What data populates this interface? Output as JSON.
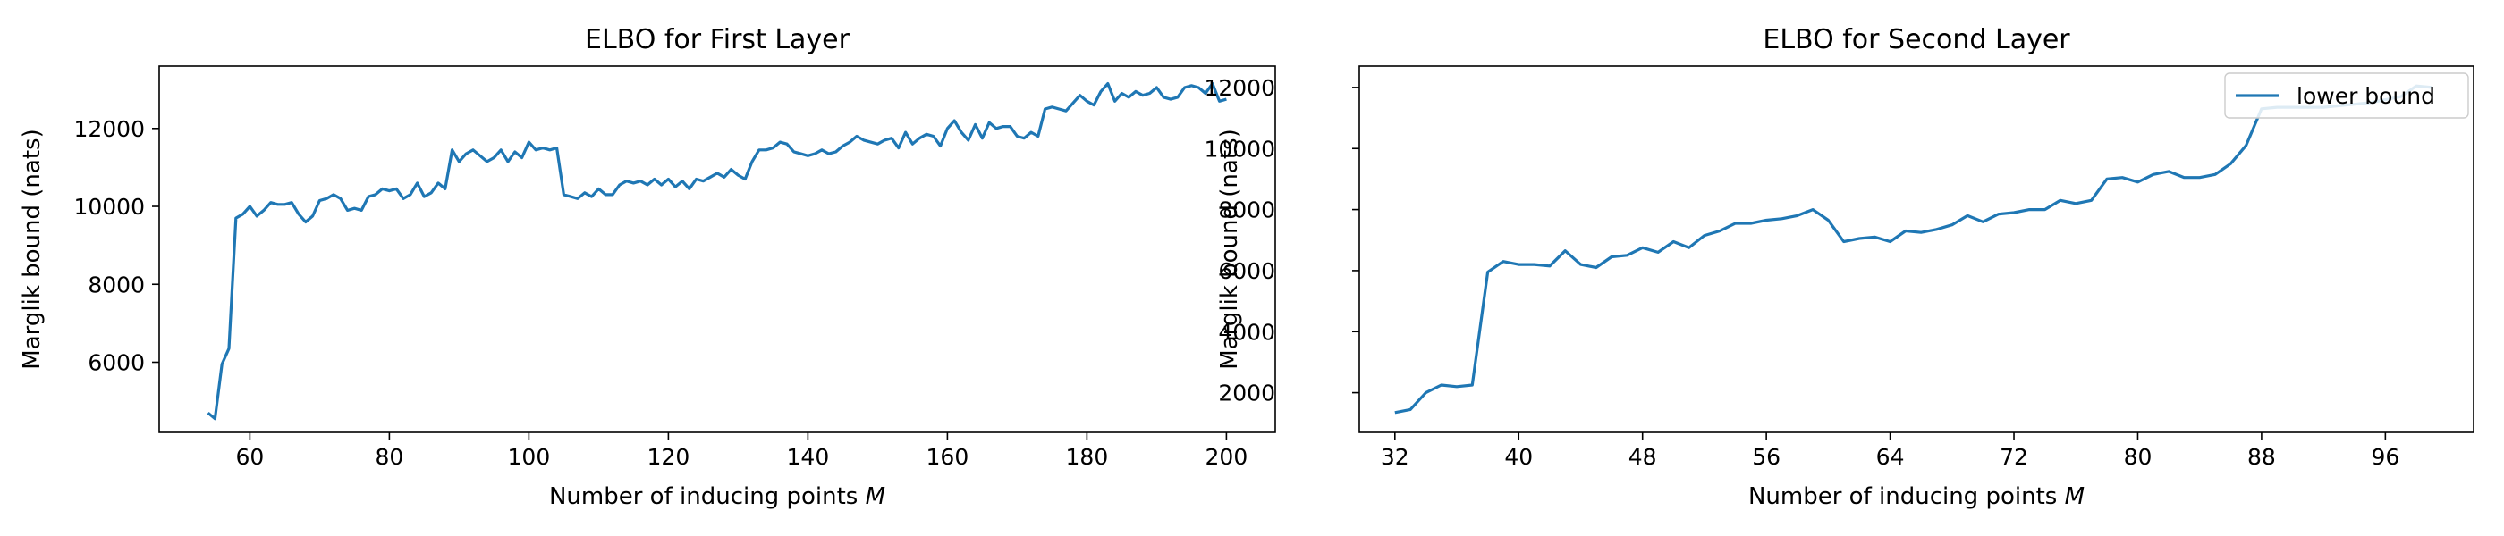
{
  "chart_data": [
    {
      "type": "line",
      "title": "ELBO for First Layer",
      "xlabel": "Number of inducing points M",
      "xlabel_plain": "Number of inducing points ",
      "xlabel_italic": "M",
      "ylabel": "Marglik bound (nats)",
      "xlim": [
        47,
        207
      ],
      "ylim": [
        4200,
        13600
      ],
      "xticks": [
        60,
        80,
        100,
        120,
        140,
        160,
        180,
        200
      ],
      "yticks": [
        6000,
        8000,
        10000,
        12000
      ],
      "grid": false,
      "color": "#1f77b4",
      "series": [
        {
          "x": [
            54,
            55,
            56,
            57,
            58,
            59,
            60,
            61,
            62,
            63,
            64,
            65,
            66,
            67,
            68,
            69,
            70,
            71,
            72,
            73,
            74,
            75,
            76,
            77,
            78,
            79,
            80,
            81,
            82,
            83,
            84,
            85,
            86,
            87,
            88,
            89,
            90,
            91,
            92,
            93,
            94,
            95,
            96,
            97,
            98,
            99,
            100,
            101,
            102,
            103,
            104,
            105,
            106,
            107,
            108,
            109,
            110,
            111,
            112,
            113,
            114,
            115,
            116,
            117,
            118,
            119,
            120,
            121,
            122,
            123,
            124,
            125,
            126,
            127,
            128,
            129,
            130,
            131,
            132,
            133,
            134,
            135,
            136,
            137,
            138,
            139,
            140,
            141,
            142,
            143,
            144,
            145,
            146,
            147,
            148,
            149,
            150,
            151,
            152,
            153,
            154,
            155,
            156,
            157,
            158,
            159,
            160,
            161,
            162,
            163,
            164,
            165,
            166,
            167,
            168,
            169,
            170,
            171,
            172,
            173,
            174,
            175,
            176,
            177,
            178,
            179,
            180,
            181,
            182,
            183,
            184,
            185,
            186,
            187,
            188,
            189,
            190,
            191,
            192,
            193,
            194,
            195,
            196,
            197,
            198,
            199,
            200
          ],
          "values": [
            4700,
            4550,
            5950,
            6350,
            9700,
            9800,
            10000,
            9750,
            9900,
            10100,
            10050,
            10050,
            10100,
            9800,
            9600,
            9750,
            10150,
            10200,
            10300,
            10200,
            9900,
            9950,
            9900,
            10250,
            10300,
            10450,
            10400,
            10450,
            10200,
            10300,
            10600,
            10250,
            10350,
            10600,
            10450,
            11450,
            11150,
            11350,
            11450,
            11300,
            11150,
            11250,
            11450,
            11150,
            11400,
            11250,
            11650,
            11450,
            11500,
            11450,
            11500,
            10300,
            10250,
            10200,
            10350,
            10250,
            10450,
            10300,
            10300,
            10550,
            10650,
            10600,
            10650,
            10550,
            10700,
            10550,
            10700,
            10500,
            10650,
            10450,
            10700,
            10650,
            10750,
            10850,
            10750,
            10950,
            10800,
            10700,
            11150,
            11450,
            11450,
            11500,
            11650,
            11600,
            11400,
            11350,
            11300,
            11350,
            11450,
            11350,
            11400,
            11550,
            11650,
            11800,
            11700,
            11650,
            11600,
            11700,
            11750,
            11500,
            11900,
            11600,
            11750,
            11850,
            11800,
            11550,
            12000,
            12200,
            11900,
            11700,
            12100,
            11750,
            12150,
            12000,
            12050,
            12050,
            11800,
            11750,
            11900,
            11800,
            12500,
            12550,
            12500,
            12450,
            12650,
            12850,
            12700,
            12600,
            12950,
            13150,
            12700,
            12900,
            12800,
            12950,
            12850,
            12900,
            13050,
            12800,
            12750,
            12800,
            13050,
            13100,
            13050,
            12900,
            13150,
            12700,
            12750
          ]
        }
      ]
    },
    {
      "type": "line",
      "title": "ELBO for Second Layer",
      "xlabel": "Number of inducing points M",
      "xlabel_plain": "Number of inducing points ",
      "xlabel_italic": "M",
      "ylabel": "Marglik bound (nats)",
      "xlim": [
        29.7,
        101.7
      ],
      "ylim": [
        700,
        12700
      ],
      "xticks": [
        32,
        40,
        48,
        56,
        64,
        72,
        80,
        88,
        96
      ],
      "yticks": [
        2000,
        4000,
        6000,
        8000,
        10000,
        12000
      ],
      "grid": false,
      "legend_position": "top-right",
      "color": "#1f77b4",
      "series": [
        {
          "name": "lower bound",
          "x": [
            32,
            33,
            34,
            35,
            36,
            37,
            38,
            39,
            40,
            41,
            42,
            43,
            44,
            45,
            46,
            47,
            48,
            49,
            50,
            51,
            52,
            53,
            54,
            55,
            56,
            57,
            58,
            59,
            60,
            61,
            62,
            63,
            64,
            65,
            66,
            67,
            68,
            69,
            70,
            71,
            72,
            73,
            74,
            75,
            76,
            77,
            78,
            79,
            80,
            81,
            82,
            83,
            84,
            85,
            86,
            87,
            88,
            89,
            90,
            91,
            92,
            93,
            94,
            95,
            96,
            97,
            98,
            99
          ],
          "values": [
            1350,
            1450,
            2000,
            2250,
            2200,
            2250,
            5950,
            6300,
            6200,
            6200,
            6150,
            6650,
            6200,
            6100,
            6450,
            6500,
            6750,
            6600,
            6950,
            6750,
            7150,
            7300,
            7550,
            7550,
            7650,
            7700,
            7800,
            8000,
            7650,
            6950,
            7050,
            7100,
            6950,
            7300,
            7250,
            7350,
            7500,
            7800,
            7600,
            7850,
            7900,
            8000,
            8000,
            8300,
            8200,
            8300,
            9000,
            9050,
            8900,
            9150,
            9250,
            9050,
            9050,
            9150,
            9500,
            10100,
            11300,
            11350,
            11350,
            11350,
            11350,
            11400,
            11450,
            11500,
            11600,
            11700,
            12050,
            12000
          ]
        }
      ]
    }
  ]
}
